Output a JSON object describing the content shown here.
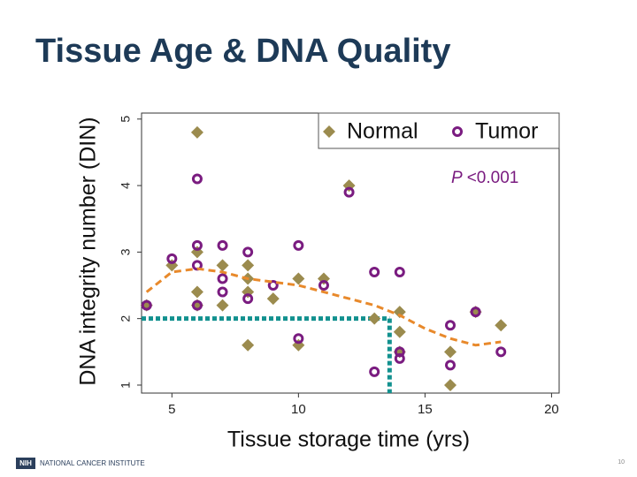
{
  "slide": {
    "title": "Tissue Age & DNA Quality",
    "logo": "NIH",
    "footer": "NATIONAL CANCER INSTITUTE",
    "page_number": "10"
  },
  "chart_data": {
    "type": "scatter",
    "x_label": "Tissue storage time (yrs)",
    "y_label": "DNA integrity number (DIN)",
    "annotation_symbol": "P",
    "annotation": "<0.001",
    "xlim": [
      3.8,
      20.3
    ],
    "ylim": [
      0.88,
      5.09
    ],
    "xticks": [
      5,
      10,
      15,
      20
    ],
    "yticks": [
      1,
      2,
      3,
      4,
      5
    ],
    "grid": false,
    "legend": "upper right",
    "series": [
      {
        "name": "Normal",
        "color": "#9b8b4e",
        "marker": "diamond",
        "x": [
          4,
          5,
          6,
          6,
          6,
          6,
          7,
          7,
          8,
          8,
          8,
          8,
          9,
          10,
          10,
          11,
          12,
          13,
          14,
          14,
          14,
          16,
          16,
          17,
          18
        ],
        "values": [
          2.2,
          2.8,
          4.8,
          3.0,
          2.4,
          2.2,
          2.8,
          2.2,
          2.8,
          2.6,
          2.4,
          1.6,
          2.3,
          2.6,
          1.6,
          2.6,
          4.0,
          2.0,
          2.1,
          1.8,
          1.5,
          1.5,
          1.0,
          2.1,
          1.9
        ]
      },
      {
        "name": "Tumor",
        "color": "#7a1c80",
        "marker": "circle",
        "x": [
          4,
          5,
          6,
          6,
          6,
          6,
          7,
          7,
          7,
          8,
          8,
          9,
          10,
          10,
          11,
          12,
          13,
          13,
          14,
          14,
          14,
          16,
          16,
          17,
          18
        ],
        "values": [
          2.2,
          2.9,
          4.1,
          3.1,
          2.8,
          2.2,
          3.1,
          2.6,
          2.4,
          3.0,
          2.3,
          2.5,
          3.1,
          1.7,
          2.5,
          3.9,
          2.7,
          1.2,
          2.7,
          1.4,
          1.5,
          1.9,
          1.3,
          2.1,
          1.5
        ]
      }
    ],
    "trend": {
      "color": "#e8892b",
      "x": [
        4,
        5,
        6,
        7,
        8,
        9,
        10,
        11,
        12,
        13,
        14,
        15,
        16,
        17,
        18
      ],
      "values": [
        2.4,
        2.7,
        2.75,
        2.7,
        2.6,
        2.55,
        2.5,
        2.4,
        2.3,
        2.2,
        2.05,
        1.85,
        1.7,
        1.6,
        1.65
      ]
    },
    "reference": {
      "color": "#12918f",
      "x": 13.6,
      "y": 2
    }
  }
}
